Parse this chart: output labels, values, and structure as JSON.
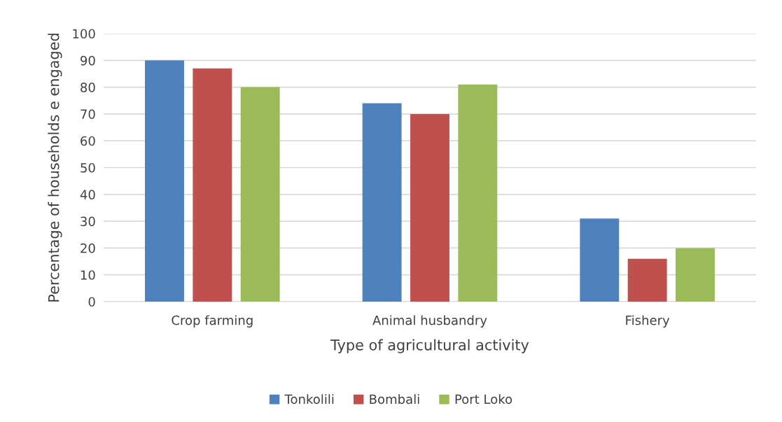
{
  "chart_data": {
    "type": "bar",
    "xlabel": "Type of agricultural activity",
    "ylabel": "Percentage of households e engaged",
    "categories": [
      "Crop farming",
      "Animal husbandry",
      "Fishery"
    ],
    "series": [
      {
        "name": "Tonkolili",
        "color": "#4f81bd",
        "values": [
          90,
          74,
          31
        ]
      },
      {
        "name": "Bombali",
        "color": "#c0504d",
        "values": [
          87,
          70,
          16
        ]
      },
      {
        "name": "Port Loko",
        "color": "#9bbb59",
        "values": [
          80,
          81,
          20
        ]
      }
    ],
    "ylim": [
      0,
      100
    ],
    "yticks": [
      0,
      10,
      20,
      30,
      40,
      50,
      60,
      70,
      80,
      90,
      100
    ],
    "grid": "y",
    "legend": "bottom"
  }
}
